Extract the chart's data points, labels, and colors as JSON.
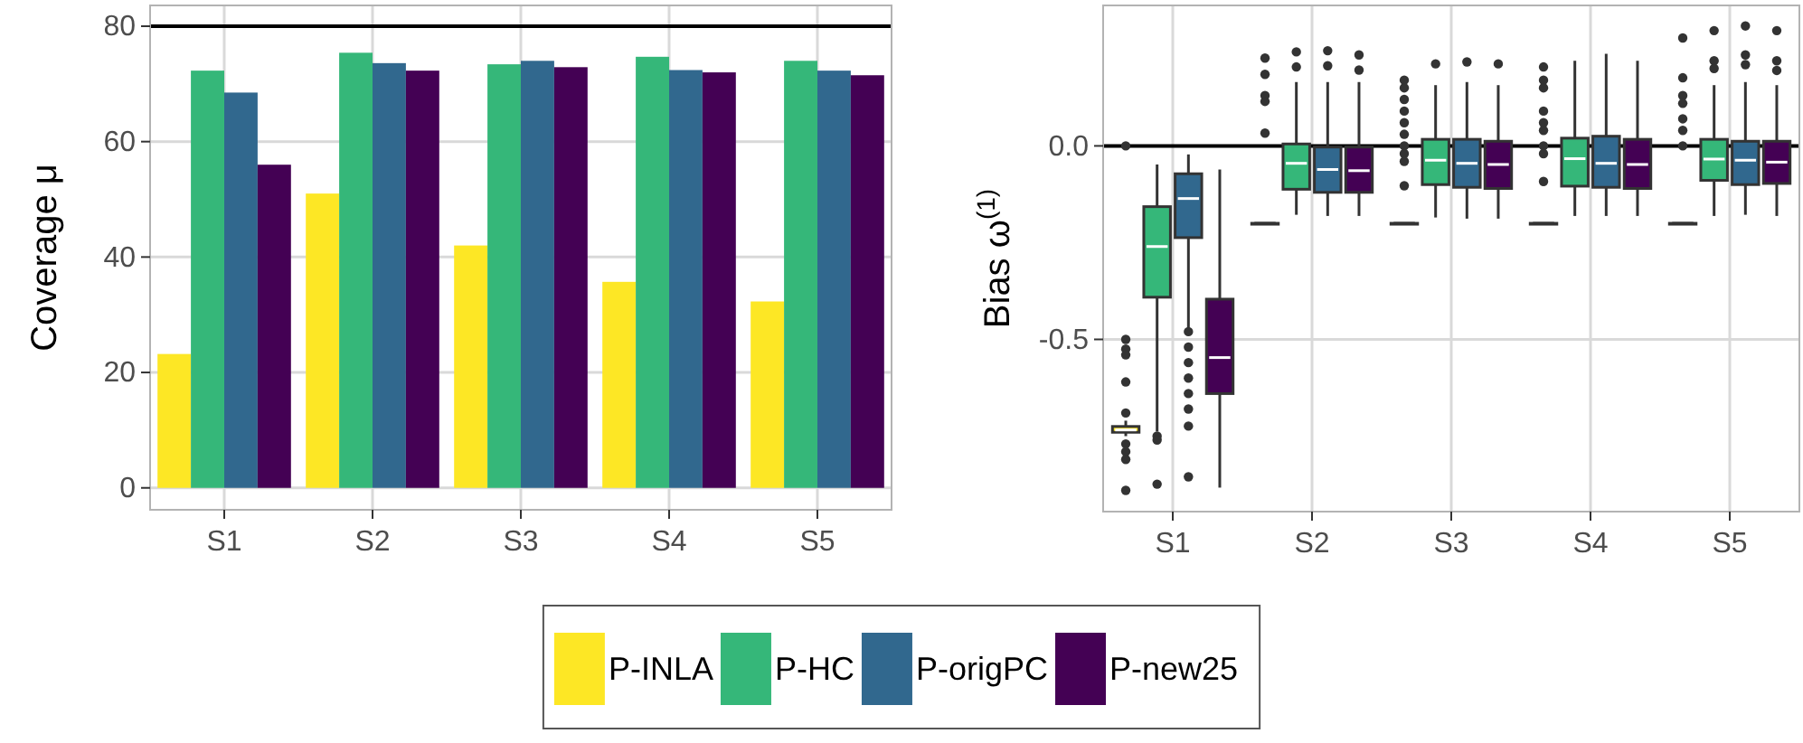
{
  "chart_data": [
    {
      "type": "bar",
      "ylabel": "Coverage μ",
      "categories": [
        "S1",
        "S2",
        "S3",
        "S4",
        "S5"
      ],
      "ylim": [
        -3.8,
        83.6
      ],
      "yticks": [
        0,
        20,
        40,
        60,
        80
      ],
      "grid": true,
      "legend": "bottom",
      "ref_lines": [
        {
          "axis": "y",
          "value": 80,
          "color": "#000000"
        }
      ],
      "series": [
        {
          "name": "P-INLA",
          "color": "#fde725",
          "values": [
            23.2,
            51.0,
            42.0,
            35.7,
            32.3
          ]
        },
        {
          "name": "P-HC",
          "color": "#35b779",
          "values": [
            72.3,
            75.4,
            73.4,
            74.7,
            74.0
          ]
        },
        {
          "name": "P-origPC",
          "color": "#31688e",
          "values": [
            68.5,
            73.6,
            74.0,
            72.4,
            72.3
          ]
        },
        {
          "name": "P-new25",
          "color": "#440154",
          "values": [
            56.0,
            72.3,
            72.9,
            72.0,
            71.5
          ]
        }
      ]
    },
    {
      "type": "box",
      "ylabel": "Bias ω$^{(1)}$",
      "categories": [
        "S1",
        "S2",
        "S3",
        "S4",
        "S5"
      ],
      "ylim": [
        -0.945,
        0.363
      ],
      "yticks": [
        {
          "value": -0.5,
          "label": "-0.5"
        },
        {
          "value": 0,
          "label": "0.0"
        }
      ],
      "grid": true,
      "legend": "bottom",
      "ref_lines": [
        {
          "axis": "y",
          "value": 0,
          "color": "#000000"
        }
      ],
      "series": [
        {
          "name": "P-INLA",
          "color": "#fde725",
          "boxes": [
            {
              "low": -0.75,
              "q1": -0.74,
              "median": -0.734,
              "q3": -0.725,
              "high": -0.71,
              "outliers": [
                0.0,
                -0.5,
                -0.525,
                -0.54,
                -0.61,
                -0.69,
                -0.77,
                -0.79,
                -0.81,
                -0.89
              ]
            },
            {
              "low": -0.2,
              "q1": -0.2,
              "median": -0.2,
              "q3": -0.2,
              "high": -0.2,
              "outliers": [
                0.227,
                0.185,
                0.13,
                0.115,
                0.033
              ]
            },
            {
              "low": -0.2,
              "q1": -0.2,
              "median": -0.2,
              "q3": -0.2,
              "high": -0.2,
              "outliers": [
                0.17,
                0.15,
                0.12,
                0.09,
                0.06,
                0.03,
                0.0,
                -0.02,
                -0.04,
                -0.103
              ]
            },
            {
              "low": -0.2,
              "q1": -0.2,
              "median": -0.2,
              "q3": -0.2,
              "high": -0.2,
              "outliers": [
                0.204,
                0.17,
                0.15,
                0.09,
                0.06,
                0.04,
                0.0,
                -0.02,
                -0.092
              ]
            },
            {
              "low": -0.2,
              "q1": -0.2,
              "median": -0.2,
              "q3": -0.2,
              "high": -0.2,
              "outliers": [
                0.279,
                0.176,
                0.13,
                0.11,
                0.07,
                0.04,
                0.0
              ]
            }
          ]
        },
        {
          "name": "P-HC",
          "color": "#35b779",
          "boxes": [
            {
              "low": -0.738,
              "q1": -0.391,
              "median": -0.26,
              "q3": -0.157,
              "high": -0.048,
              "outliers": [
                -0.75,
                -0.76,
                -0.874
              ]
            },
            {
              "low": -0.178,
              "q1": -0.112,
              "median": -0.045,
              "q3": 0.005,
              "high": 0.165,
              "outliers": [
                0.243,
                0.204
              ]
            },
            {
              "low": -0.185,
              "q1": -0.1,
              "median": -0.037,
              "q3": 0.017,
              "high": 0.157,
              "outliers": [
                0.212
              ]
            },
            {
              "low": -0.181,
              "q1": -0.104,
              "median": -0.033,
              "q3": 0.02,
              "high": 0.22
            },
            {
              "low": -0.181,
              "q1": -0.089,
              "median": -0.034,
              "q3": 0.017,
              "high": 0.157,
              "outliers": [
                0.298,
                0.22,
                0.2
              ]
            }
          ]
        },
        {
          "name": "P-origPC",
          "color": "#31688e",
          "boxes": [
            {
              "low": -0.47,
              "q1": -0.237,
              "median": -0.136,
              "q3": -0.072,
              "high": -0.022,
              "outliers": [
                -0.48,
                -0.52,
                -0.56,
                -0.6,
                -0.64,
                -0.68,
                -0.724,
                -0.855
              ]
            },
            {
              "low": -0.181,
              "q1": -0.12,
              "median": -0.061,
              "q3": -0.003,
              "high": 0.165,
              "outliers": [
                0.246,
                0.207
              ]
            },
            {
              "low": -0.188,
              "q1": -0.107,
              "median": -0.045,
              "q3": 0.017,
              "high": 0.165,
              "outliers": [
                0.217
              ]
            },
            {
              "low": -0.181,
              "q1": -0.107,
              "median": -0.045,
              "q3": 0.025,
              "high": 0.238
            },
            {
              "low": -0.178,
              "q1": -0.1,
              "median": -0.037,
              "q3": 0.012,
              "high": 0.165,
              "outliers": [
                0.31,
                0.235,
                0.21
              ]
            }
          ]
        },
        {
          "name": "P-new25",
          "color": "#440154",
          "boxes": [
            {
              "low": -0.883,
              "q1": -0.64,
              "median": -0.547,
              "q3": -0.396,
              "high": -0.061
            },
            {
              "low": -0.181,
              "q1": -0.12,
              "median": -0.064,
              "q3": -0.003,
              "high": 0.165,
              "outliers": [
                0.235,
                0.196
              ]
            },
            {
              "low": -0.188,
              "q1": -0.11,
              "median": -0.048,
              "q3": 0.012,
              "high": 0.157,
              "outliers": [
                0.212
              ]
            },
            {
              "low": -0.181,
              "q1": -0.11,
              "median": -0.048,
              "q3": 0.017,
              "high": 0.22
            },
            {
              "low": -0.181,
              "q1": -0.097,
              "median": -0.042,
              "q3": 0.012,
              "high": 0.157,
              "outliers": [
                0.298,
                0.22,
                0.195
              ]
            }
          ]
        }
      ]
    }
  ]
}
